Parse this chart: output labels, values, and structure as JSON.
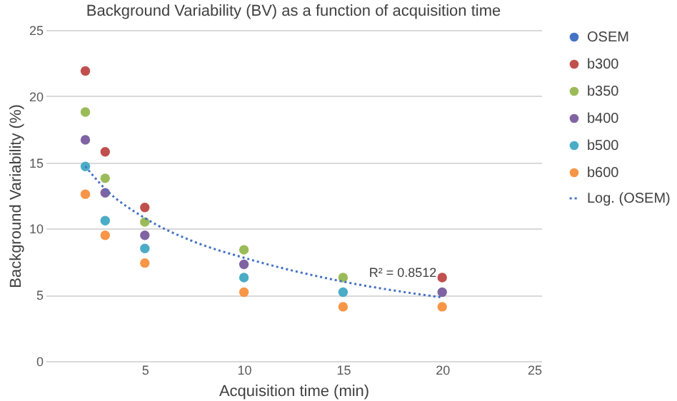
{
  "chart_data": {
    "type": "scatter",
    "title": "Background Variability (BV) as  a function of acquisition time",
    "xlabel": "Acquisition time (min)",
    "ylabel": "Background Variability (%)",
    "x": [
      2,
      3,
      5,
      10,
      15,
      20
    ],
    "series": [
      {
        "name": "OSEM",
        "color": "#4472c4",
        "values": [
          null,
          null,
          null,
          null,
          null,
          null
        ]
      },
      {
        "name": "b300",
        "color": "#c0504d",
        "values": [
          21.9,
          15.8,
          11.6,
          null,
          null,
          6.3
        ]
      },
      {
        "name": "b350",
        "color": "#9bbb59",
        "values": [
          18.8,
          13.8,
          10.5,
          8.4,
          6.3,
          null
        ]
      },
      {
        "name": "b400",
        "color": "#8064a2",
        "values": [
          16.7,
          12.7,
          9.5,
          7.3,
          null,
          5.2
        ]
      },
      {
        "name": "b500",
        "color": "#4bacc6",
        "values": [
          14.7,
          10.6,
          8.5,
          6.3,
          5.2,
          null
        ]
      },
      {
        "name": "b600",
        "color": "#f79646",
        "values": [
          12.6,
          9.5,
          7.4,
          5.2,
          4.1,
          4.1
        ]
      },
      {
        "name": "Log. (OSEM)",
        "type": "line",
        "line_style": "dotted",
        "marker": "none",
        "color": "#4472c4",
        "x": [
          2,
          3,
          5,
          7.5,
          10,
          15,
          20
        ],
        "values": [
          14.7,
          13.0,
          10.8,
          9.0,
          7.8,
          6.0,
          4.8
        ]
      }
    ],
    "annotations": [
      "R² = 0.8512"
    ],
    "xlim": [
      0,
      25
    ],
    "xticks": [
      5,
      10,
      15,
      20,
      25
    ],
    "ylim": [
      0,
      25
    ],
    "yticks": [
      0,
      5,
      10,
      15,
      20,
      25
    ],
    "grid": "y",
    "legend": "right",
    "marker": "circle"
  }
}
